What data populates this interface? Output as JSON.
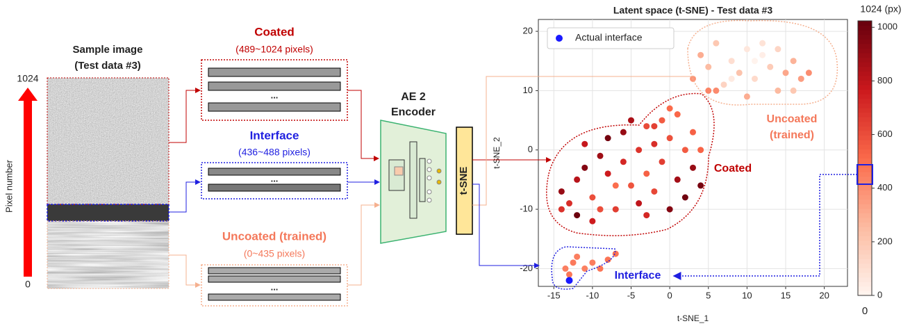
{
  "figure": {
    "pixel_axis_label": "Pixel number",
    "pixel_top": "1024",
    "pixel_bottom": "0",
    "sample_title": [
      "Sample image",
      "(Test data #3)"
    ],
    "groups": [
      {
        "name": "Coated",
        "range": "(489~1024 pixels)",
        "color": "#c00000"
      },
      {
        "name": "Interface",
        "range": "(436~488 pixels)",
        "color": "#1f1fe0"
      },
      {
        "name": "Uncoated (trained)",
        "range": "(0~435 pixels)",
        "color": "#f4785a"
      }
    ],
    "ellipsis": "...",
    "encoder": [
      "AE 2",
      "Encoder"
    ],
    "tsne_box": "t-SNE"
  },
  "chart_data": {
    "type": "scatter",
    "title": "Latent space (t-SNE) - Test data #3",
    "x_label": "t-SNE_1",
    "y_label": "t-SNE_2",
    "xlim": [
      -17,
      23
    ],
    "ylim": [
      -23,
      22
    ],
    "xticks": [
      -15,
      -10,
      -5,
      0,
      5,
      10,
      15,
      20
    ],
    "yticks": [
      -20,
      -10,
      0,
      10,
      20
    ],
    "grid": true,
    "points": {
      "x": [
        -14,
        -13,
        -12,
        -11,
        -10,
        -9,
        -8,
        -8,
        -7,
        -6,
        -6,
        -5,
        -4,
        -4,
        -3,
        -3,
        -2,
        -2,
        -1,
        -1,
        0,
        0,
        1,
        1,
        2,
        2,
        3,
        3,
        4,
        -12,
        -10,
        -14,
        -5,
        -7,
        -11,
        0,
        -3,
        4,
        -9,
        -2,
        3,
        4,
        5,
        6,
        7,
        8,
        9,
        10,
        11,
        12,
        13,
        14,
        15,
        16,
        17,
        18,
        6,
        10,
        12,
        8,
        14,
        5,
        11,
        16,
        -13,
        -12.5,
        -12,
        -11,
        -10,
        -9,
        -8,
        -7,
        -13.5
      ],
      "y": [
        -7,
        -9,
        -5,
        -3,
        -8,
        -1,
        -4,
        2,
        -10,
        -2,
        3,
        -6,
        0,
        -9,
        4,
        -4,
        1,
        -7,
        5,
        -2,
        2,
        -10,
        -5,
        6,
        0,
        -8,
        -3,
        3,
        -6,
        -11,
        -12,
        -10,
        5,
        -6,
        1,
        7,
        -11,
        0,
        -10,
        4,
        12,
        16,
        14,
        18,
        11,
        15,
        13,
        17,
        12,
        16,
        14,
        10,
        13,
        15,
        12,
        13,
        10,
        9,
        18,
        12,
        17,
        10,
        15,
        10,
        -21,
        -19,
        -18,
        -20,
        -19,
        -20,
        -18.5,
        -17.5,
        -20
      ],
      "c": [
        900,
        700,
        820,
        950,
        600,
        880,
        760,
        990,
        650,
        720,
        900,
        580,
        680,
        800,
        610,
        540,
        700,
        620,
        560,
        650,
        590,
        950,
        870,
        520,
        560,
        1000,
        900,
        540,
        980,
        1010,
        760,
        690,
        850,
        500,
        780,
        510,
        720,
        530,
        600,
        640,
        380,
        300,
        250,
        200,
        150,
        100,
        220,
        60,
        120,
        30,
        180,
        260,
        320,
        280,
        350,
        400,
        410,
        300,
        80,
        50,
        140,
        430,
        10,
        200,
        470,
        460,
        450,
        440,
        455,
        475,
        480,
        486,
        445
      ]
    },
    "highlight": {
      "name": "Actual interface",
      "color": "#1a1aff",
      "x": -13,
      "y": -22
    },
    "colorbar": {
      "top_label": "1024 (px)",
      "bottom_label": "0",
      "lim": [
        0,
        1024
      ],
      "ticks": [
        0,
        200,
        400,
        600,
        800,
        1000
      ]
    },
    "annotations": [
      {
        "text": [
          "Uncoated",
          "(trained)"
        ],
        "color": "#f4785a"
      },
      {
        "text": [
          "Coated"
        ],
        "color": "#c00000"
      },
      {
        "text": [
          "Interface"
        ],
        "color": "#1f1fe0"
      }
    ]
  }
}
